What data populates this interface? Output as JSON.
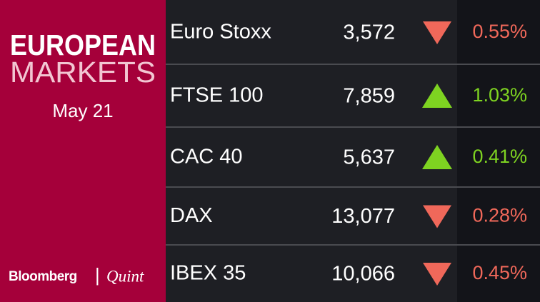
{
  "panel": {
    "title_line1": "EUROPEAN",
    "title_line2": "MARKETS",
    "date": "May 21",
    "brand": "Bloomberg",
    "separator": "|",
    "brand2": "Quint"
  },
  "colors": {
    "up": "#7ed321",
    "down": "#f0685a"
  },
  "table": {
    "rows": [
      {
        "name": "Euro Stoxx",
        "value": "3,572",
        "direction": "down",
        "change": "0.55%"
      },
      {
        "name": "FTSE 100",
        "value": "7,859",
        "direction": "up",
        "change": "1.03%"
      },
      {
        "name": "CAC 40",
        "value": "5,637",
        "direction": "up",
        "change": "0.41%"
      },
      {
        "name": "DAX",
        "value": "13,077",
        "direction": "down",
        "change": "0.28%"
      },
      {
        "name": "IBEX 35",
        "value": "10,066",
        "direction": "down",
        "change": "0.45%"
      }
    ]
  }
}
